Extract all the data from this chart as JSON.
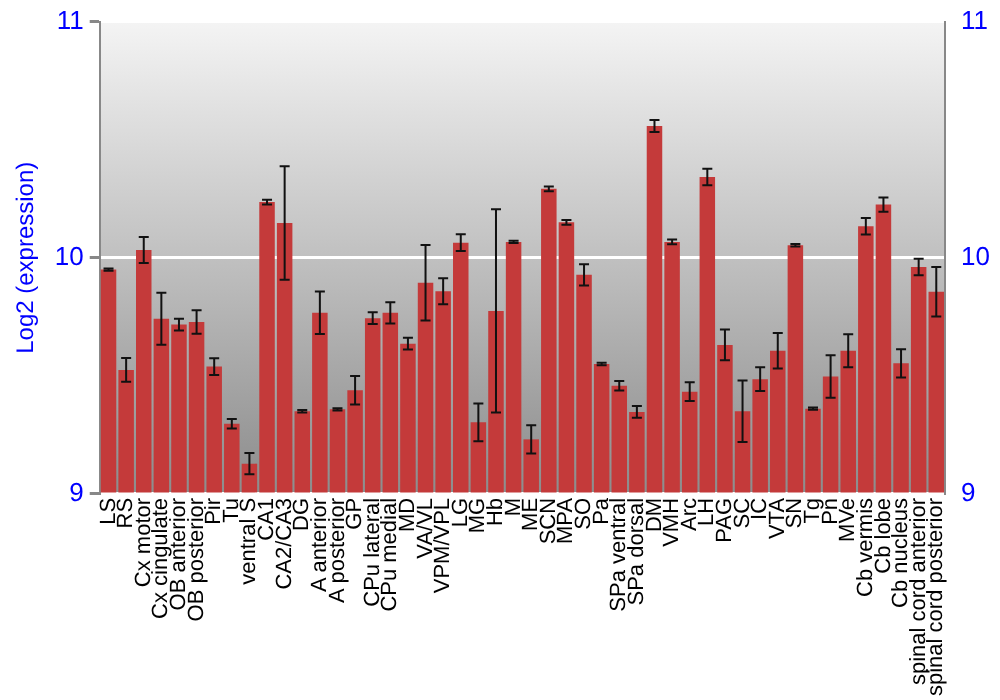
{
  "chart_data": {
    "type": "bar",
    "ylabel": "Log2 (expression)",
    "categories": [
      "LS",
      "RS",
      "Cx motor",
      "Cx cingulate",
      "OB anterior",
      "OB posterior",
      "Pir",
      "Tu",
      "ventral S",
      "CA1",
      "CA2/CA3",
      "DG",
      "A anterior",
      "A posterior",
      "GP",
      "CPu lateral",
      "CPu medial",
      "MD",
      "VA/VL",
      "VPM/VPL",
      "LG",
      "MG",
      "Hb",
      "M",
      "ME",
      "SCN",
      "MPA",
      "SO",
      "Pa",
      "SPa ventral",
      "SPa dorsal",
      "DM",
      "VMH",
      "Arc",
      "LH",
      "PAG",
      "SC",
      "IC",
      "VTA",
      "SN",
      "Tg",
      "Pn",
      "MVe",
      "Cb vermis",
      "Cb lobe",
      "Cb nucleus",
      "spinal cord anterior",
      "spinal cord posterior"
    ],
    "values": [
      9.95,
      9.525,
      10.033,
      9.742,
      9.717,
      9.728,
      9.539,
      9.297,
      9.128,
      10.236,
      10.147,
      9.35,
      9.767,
      9.358,
      9.439,
      9.744,
      9.767,
      9.636,
      9.894,
      9.858,
      10.064,
      9.303,
      9.775,
      10.067,
      9.231,
      10.292,
      10.15,
      9.928,
      9.55,
      9.458,
      9.347,
      10.558,
      10.067,
      9.433,
      10.342,
      9.631,
      9.35,
      9.486,
      9.606,
      10.053,
      9.361,
      9.497,
      9.606,
      10.133,
      10.225,
      9.553,
      9.961,
      9.856
    ],
    "errors": [
      0.005,
      0.05,
      0.055,
      0.11,
      0.025,
      0.05,
      0.035,
      0.02,
      0.045,
      0.01,
      0.24,
      0.005,
      0.09,
      0.005,
      0.06,
      0.025,
      0.045,
      0.025,
      0.16,
      0.055,
      0.035,
      0.08,
      0.43,
      0.005,
      0.06,
      0.01,
      0.01,
      0.045,
      0.005,
      0.02,
      0.025,
      0.025,
      0.01,
      0.04,
      0.035,
      0.065,
      0.13,
      0.05,
      0.075,
      0.005,
      0.005,
      0.09,
      0.07,
      0.035,
      0.03,
      0.06,
      0.035,
      0.105
    ],
    "color": "#c43a3a",
    "ylim": [
      9,
      11
    ],
    "yticks": [
      9,
      10,
      11
    ],
    "y2lim": [
      9,
      11
    ],
    "y2ticks": [
      9,
      10,
      11
    ],
    "grid": "y",
    "legend": false
  }
}
